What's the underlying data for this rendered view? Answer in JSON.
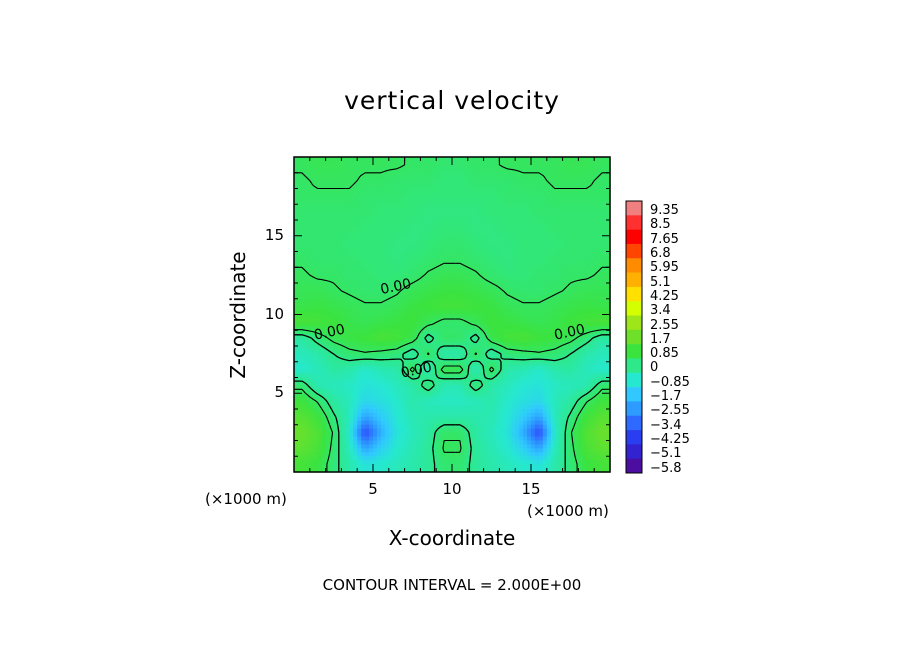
{
  "title": "vertical velocity",
  "footer": "CONTOUR INTERVAL = 2.000E+00",
  "chart_data": {
    "type": "heatmap",
    "title": "vertical velocity",
    "xlabel": "X-coordinate",
    "ylabel": "Z-coordinate",
    "x_unit": "(×1000 m)",
    "y_unit": "(×1000 m)",
    "xlim": [
      0,
      20
    ],
    "ylim": [
      0,
      20
    ],
    "x_ticks": [
      5,
      10,
      15
    ],
    "y_ticks": [
      5,
      10,
      15
    ],
    "contour_interval": "2.000E+00",
    "contour_labels": [
      {
        "text": "0.00",
        "x": 6.5,
        "y": 11.5
      },
      {
        "text": "0.00",
        "x": 2.3,
        "y": 8.6
      },
      {
        "text": "0.00",
        "x": 17.5,
        "y": 8.6
      },
      {
        "text": "0.00",
        "x": 7.8,
        "y": 6.2
      }
    ],
    "colorbar": {
      "ticks": [
        "9.35",
        "8.5",
        "7.65",
        "6.8",
        "5.95",
        "5.1",
        "4.25",
        "3.4",
        "2.55",
        "1.7",
        "0.85",
        "0",
        "−0.85",
        "−1.7",
        "−2.55",
        "−3.4",
        "−4.25",
        "−5.1",
        "−5.8"
      ],
      "colors": [
        "#f08080",
        "#ff3030",
        "#ff0000",
        "#ff4500",
        "#ff8c00",
        "#ffb000",
        "#ffe000",
        "#d4ff00",
        "#9ee61a",
        "#6fe02a",
        "#3be33f",
        "#2ee88a",
        "#26e8d0",
        "#30c8ff",
        "#2d9bff",
        "#2e6aff",
        "#2b3df0",
        "#3222d0",
        "#4b0ea0"
      ]
    },
    "colormap_description": "mostly 0 to 0.85 over the domain; negative updraft-free zones near x=4 and x=16 at z=2 (about -4); small positive core cells near x=10",
    "cells": {
      "nx": 20,
      "nz": 20,
      "values": [
        [
          0.5,
          0.6,
          0.6,
          0.5,
          0.5,
          0.5,
          0.5,
          0.4,
          0.4,
          0.3,
          0.3,
          0.4,
          0.4,
          0.5,
          0.5,
          0.5,
          0.5,
          0.6,
          0.6,
          0.5
        ],
        [
          0.4,
          0.5,
          0.5,
          0.5,
          0.4,
          0.4,
          0.3,
          0.3,
          0.3,
          0.2,
          0.2,
          0.3,
          0.3,
          0.3,
          0.4,
          0.4,
          0.5,
          0.5,
          0.5,
          0.4
        ],
        [
          0.4,
          0.4,
          0.4,
          0.4,
          0.3,
          0.3,
          0.3,
          0.2,
          0.2,
          0.2,
          0.2,
          0.2,
          0.2,
          0.3,
          0.3,
          0.3,
          0.4,
          0.4,
          0.4,
          0.4
        ],
        [
          0.3,
          0.3,
          0.3,
          0.3,
          0.3,
          0.2,
          0.2,
          0.2,
          0.1,
          0.1,
          0.1,
          0.1,
          0.2,
          0.2,
          0.2,
          0.3,
          0.3,
          0.3,
          0.3,
          0.3
        ],
        [
          0.3,
          0.3,
          0.3,
          0.3,
          0.2,
          0.2,
          0.2,
          0.1,
          0.1,
          0.2,
          0.2,
          0.1,
          0.1,
          0.2,
          0.2,
          0.2,
          0.3,
          0.3,
          0.3,
          0.3
        ],
        [
          0.3,
          0.3,
          0.3,
          0.2,
          0.2,
          0.2,
          0.1,
          0.1,
          0.2,
          0.3,
          0.3,
          0.2,
          0.1,
          0.1,
          0.2,
          0.2,
          0.2,
          0.3,
          0.3,
          0.3
        ],
        [
          0.4,
          0.3,
          0.3,
          0.3,
          0.2,
          0.2,
          0.1,
          0.2,
          0.3,
          0.4,
          0.4,
          0.3,
          0.2,
          0.1,
          0.2,
          0.2,
          0.3,
          0.3,
          0.3,
          0.4
        ],
        [
          0.5,
          0.4,
          0.4,
          0.3,
          0.3,
          0.2,
          0.2,
          0.3,
          0.5,
          0.6,
          0.6,
          0.5,
          0.3,
          0.2,
          0.2,
          0.3,
          0.3,
          0.4,
          0.4,
          0.5
        ],
        [
          0.6,
          0.6,
          0.5,
          0.4,
          0.3,
          0.3,
          0.4,
          0.6,
          0.7,
          0.8,
          0.8,
          0.7,
          0.6,
          0.4,
          0.3,
          0.3,
          0.4,
          0.5,
          0.6,
          0.6
        ],
        [
          0.7,
          0.8,
          0.7,
          0.6,
          0.5,
          0.5,
          0.6,
          0.8,
          0.9,
          1.0,
          1.0,
          0.9,
          0.8,
          0.6,
          0.5,
          0.5,
          0.6,
          0.7,
          0.8,
          0.7
        ],
        [
          1.1,
          1.0,
          0.9,
          0.7,
          0.6,
          0.7,
          0.8,
          0.9,
          0.6,
          0.3,
          0.3,
          0.6,
          0.9,
          0.8,
          0.7,
          0.6,
          0.7,
          0.9,
          1.0,
          1.1
        ],
        [
          -0.3,
          0.2,
          0.6,
          0.8,
          0.9,
          1.1,
          1.0,
          0.7,
          -0.2,
          0.4,
          0.4,
          -0.2,
          0.7,
          1.0,
          1.1,
          0.9,
          0.8,
          0.6,
          0.2,
          -0.3
        ],
        [
          -0.6,
          -0.4,
          0.0,
          0.3,
          0.4,
          0.3,
          0.2,
          -0.3,
          0.5,
          -0.4,
          -0.4,
          0.5,
          -0.3,
          0.2,
          0.3,
          0.4,
          0.3,
          0.0,
          -0.4,
          -0.6
        ],
        [
          -0.8,
          -0.6,
          -0.3,
          -0.4,
          -0.8,
          -0.5,
          -0.4,
          0.6,
          -0.6,
          0.7,
          0.7,
          -0.6,
          0.6,
          -0.4,
          -0.5,
          -0.8,
          -0.4,
          -0.3,
          -0.6,
          -0.8
        ],
        [
          0.3,
          -0.5,
          -0.6,
          -0.7,
          -1.0,
          -0.9,
          -0.6,
          -0.4,
          0.3,
          -0.5,
          -0.5,
          0.3,
          -0.4,
          -0.6,
          -0.9,
          -1.0,
          -0.7,
          -0.6,
          -0.5,
          0.3
        ],
        [
          0.9,
          0.4,
          -0.3,
          -0.6,
          -1.3,
          -1.1,
          -0.8,
          -0.4,
          -0.6,
          -0.7,
          -0.7,
          -0.6,
          -0.4,
          -0.8,
          -1.1,
          -1.3,
          -0.6,
          -0.3,
          0.4,
          0.9
        ],
        [
          1.3,
          0.9,
          0.1,
          -0.6,
          -2.4,
          -1.6,
          -0.9,
          -0.5,
          -0.4,
          -0.4,
          -0.4,
          -0.4,
          -0.5,
          -0.9,
          -1.6,
          -2.4,
          -0.6,
          0.1,
          0.9,
          1.3
        ],
        [
          1.6,
          1.2,
          0.4,
          -0.8,
          -4.0,
          -2.2,
          -1.0,
          -0.6,
          -0.3,
          0.4,
          0.4,
          -0.3,
          -0.6,
          -1.0,
          -2.2,
          -4.0,
          -0.8,
          0.4,
          1.2,
          1.6
        ],
        [
          1.4,
          1.1,
          0.3,
          -0.6,
          -2.4,
          -1.5,
          -0.8,
          -0.5,
          -0.2,
          0.5,
          0.5,
          -0.2,
          -0.5,
          -0.8,
          -1.5,
          -2.4,
          -0.6,
          0.3,
          1.1,
          1.4
        ],
        [
          1.0,
          0.8,
          0.2,
          -0.4,
          -1.0,
          -0.8,
          -0.6,
          -0.4,
          -0.2,
          0.3,
          0.3,
          -0.2,
          -0.4,
          -0.6,
          -0.8,
          -1.0,
          -0.4,
          0.2,
          0.8,
          1.0
        ]
      ]
    }
  }
}
